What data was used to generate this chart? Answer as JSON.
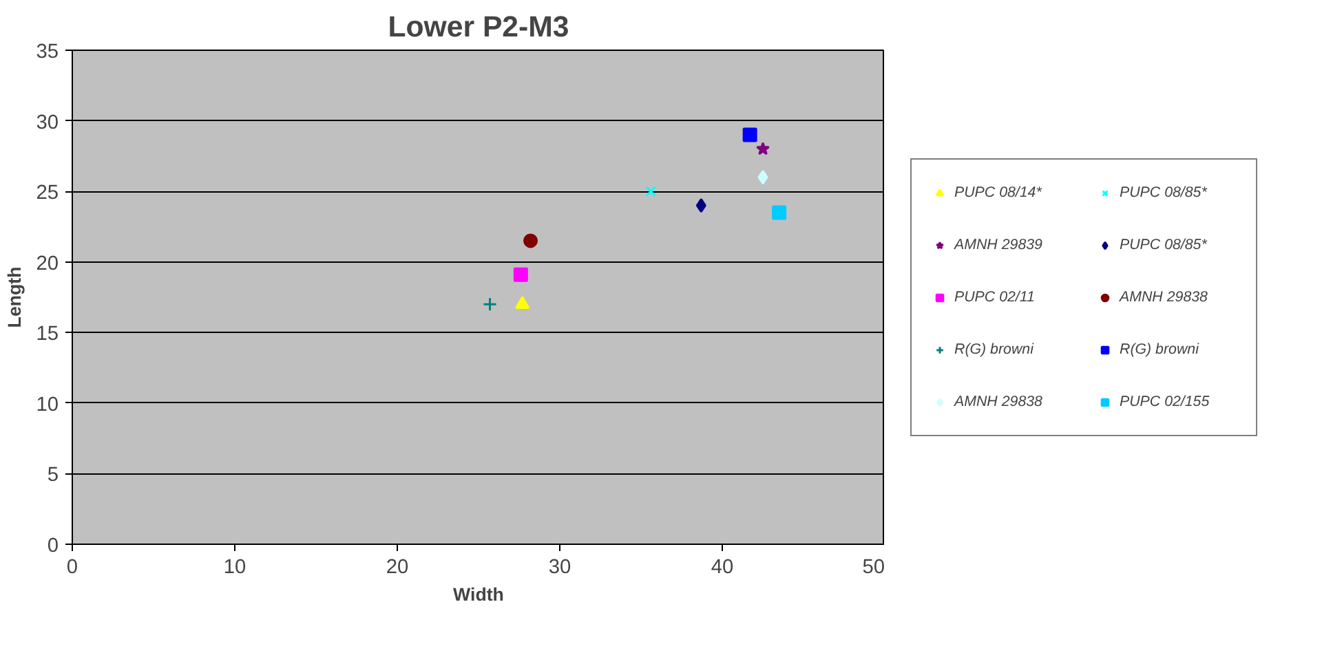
{
  "chart_data": {
    "type": "scatter",
    "title": "Lower P2-M3",
    "xlabel": "Width",
    "ylabel": "Length",
    "xlim": [
      0,
      50
    ],
    "xticks": [
      0,
      10,
      20,
      30,
      40,
      50
    ],
    "ylim": [
      0,
      35
    ],
    "yticks": [
      0,
      5,
      10,
      15,
      20,
      25,
      30,
      35
    ],
    "grid": "y",
    "legend": "right",
    "series": [
      {
        "name": "PUPC 08/14*",
        "color": "#ffff00",
        "marker": "triangle",
        "x": [
          27.7
        ],
        "values": [
          17
        ]
      },
      {
        "name": "PUPC 08/85*",
        "color": "#00ffff",
        "marker": "x",
        "x": [
          35.6
        ],
        "values": [
          25
        ]
      },
      {
        "name": "AMNH 29839",
        "color": "#800080",
        "marker": "star",
        "x": [
          42.5
        ],
        "values": [
          28
        ]
      },
      {
        "name": "PUPC 08/85*",
        "color": "#000080",
        "marker": "diamond",
        "x": [
          38.7
        ],
        "values": [
          24
        ]
      },
      {
        "name": "PUPC 02/11",
        "color": "#ff00ff",
        "marker": "square",
        "x": [
          27.6
        ],
        "values": [
          19.1
        ]
      },
      {
        "name": "AMNH 29838",
        "color": "#800000",
        "marker": "circle",
        "x": [
          28.2
        ],
        "values": [
          21.5
        ]
      },
      {
        "name": "R(G) browni",
        "color": "#008080",
        "marker": "cross",
        "x": [
          25.7
        ],
        "values": [
          17
        ]
      },
      {
        "name": "R(G) browni",
        "color": "#0000ff",
        "marker": "square",
        "x": [
          41.7
        ],
        "values": [
          29
        ]
      },
      {
        "name": "AMNH 29838",
        "color": "#ccffff",
        "marker": "diamond",
        "x": [
          42.5
        ],
        "values": [
          26
        ]
      },
      {
        "name": "PUPC 02/155",
        "color": "#00ccff",
        "marker": "square",
        "x": [
          43.5
        ],
        "values": [
          23.5
        ]
      }
    ]
  }
}
